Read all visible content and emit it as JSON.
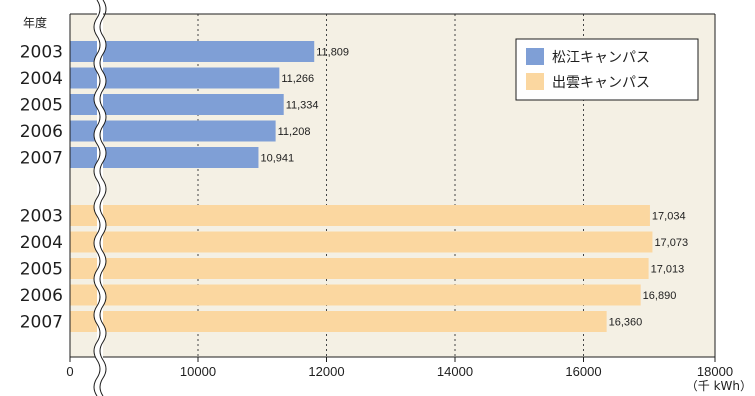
{
  "chart_data": {
    "type": "bar",
    "orientation": "horizontal",
    "title": "",
    "ylabel": "年度",
    "xlabel": "",
    "unit_label": "（千 kWh）",
    "x_ticks": [
      "0",
      "10000",
      "12000",
      "14000",
      "16000",
      "18000"
    ],
    "xlim": [
      8000,
      18000
    ],
    "axis_break": true,
    "grid": "vertical dashed",
    "legend_position": "top-right",
    "series": [
      {
        "name": "松江キャンパス",
        "color": "#7f9fd6",
        "categories": [
          "2003",
          "2004",
          "2005",
          "2006",
          "2007"
        ],
        "values": [
          11809,
          11266,
          11334,
          11208,
          10941
        ],
        "labels": [
          "11,809",
          "11,266",
          "11,334",
          "11,208",
          "10,941"
        ]
      },
      {
        "name": "出雲キャンパス",
        "color": "#fbd7a0",
        "categories": [
          "2003",
          "2004",
          "2005",
          "2006",
          "2007"
        ],
        "values": [
          17034,
          17073,
          17013,
          16890,
          16360
        ],
        "labels": [
          "17,034",
          "17,073",
          "17,013",
          "16,890",
          "16,360"
        ]
      }
    ]
  },
  "colors": {
    "plot_background": "#f4f0e4",
    "axis": "#1e1e1e"
  }
}
